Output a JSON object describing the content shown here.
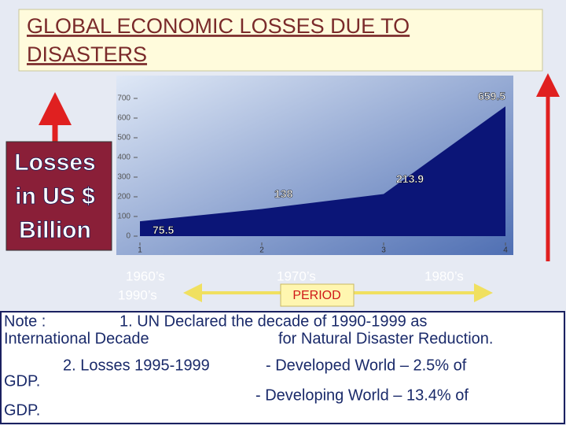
{
  "title": [
    "GLOBAL ECONOMIC LOSSES DUE TO",
    "DISASTERS"
  ],
  "y_label": [
    "Losses",
    "in US $",
    "Billion"
  ],
  "decades": [
    "1960’s",
    "1990’s",
    "1970’s",
    "1980’s"
  ],
  "period": "PERIOD",
  "note": [
    "Note :",
    "1. UN Declared the decade of 1990-1999 as",
    "International Decade",
    "for Natural Disaster Reduction.",
    "2. Losses 1995-1999",
    "- Developed World  – 2.5% of",
    "GDP.",
    "- Developing World – 13.4% of",
    "GDP."
  ],
  "chart_data": {
    "type": "area",
    "x": [
      1,
      2,
      3,
      4
    ],
    "values": [
      75.5,
      138,
      213.9,
      659.5
    ],
    "color": "#0b1577",
    "xlim": [
      1,
      4
    ],
    "ylim": [
      0,
      700
    ],
    "xticks": [
      1,
      2,
      3,
      4
    ],
    "yticks": [
      0,
      100,
      200,
      300,
      400,
      500,
      600,
      700
    ]
  }
}
